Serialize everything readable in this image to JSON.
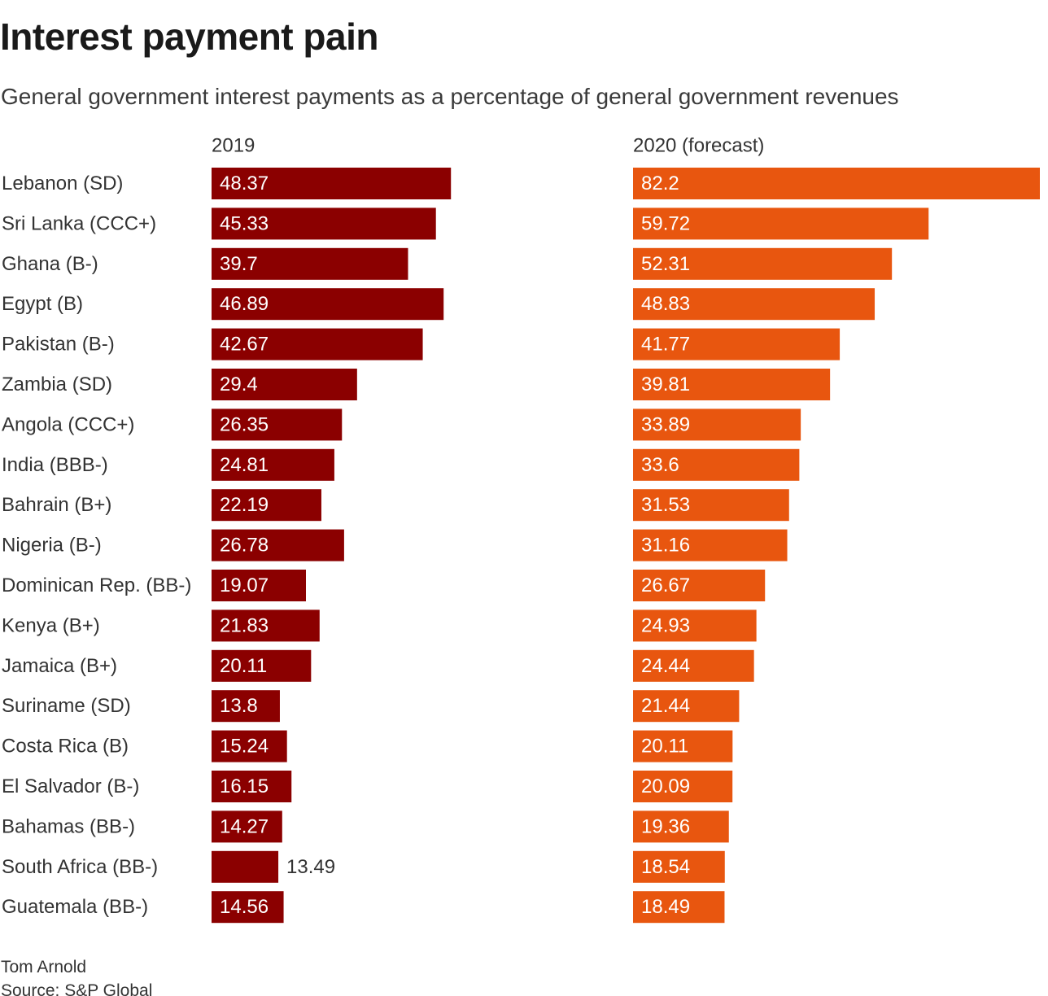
{
  "title": "Interest payment pain",
  "subtitle": "General government interest payments as a percentage of general government revenues",
  "byline": "Tom Arnold",
  "source": "Source: S&P Global",
  "colors": {
    "series_2019": "#8b0000",
    "series_2020": "#e8560f",
    "label_inside": "#ffffff",
    "label_outside": "#333333",
    "axis_text": "#333333"
  },
  "chart_data": {
    "type": "bar",
    "orientation": "horizontal",
    "title": "Interest payment pain",
    "subtitle": "General government interest payments as a percentage of general government revenues",
    "categories": [
      "Lebanon (SD)",
      "Sri Lanka (CCC+)",
      "Ghana (B-)",
      "Egypt (B)",
      "Pakistan (B-)",
      "Zambia (SD)",
      "Angola (CCC+)",
      "India (BBB-)",
      "Bahrain (B+)",
      "Nigeria (B-)",
      "Dominican Rep. (BB-)",
      "Kenya (B+)",
      "Jamaica (B+)",
      "Suriname (SD)",
      "Costa Rica (B)",
      "El Salvador (B-)",
      "Bahamas (BB-)",
      "South Africa (BB-)",
      "Guatemala (BB-)"
    ],
    "series": [
      {
        "name": "2019",
        "values": [
          48.37,
          45.33,
          39.7,
          46.89,
          42.67,
          29.4,
          26.35,
          24.81,
          22.19,
          26.78,
          19.07,
          21.83,
          20.11,
          13.8,
          15.24,
          16.15,
          14.27,
          13.49,
          14.56
        ],
        "labels": [
          "48.37",
          "45.33",
          "39.7",
          "46.89",
          "42.67",
          "29.4",
          "26.35",
          "24.81",
          "22.19",
          "26.78",
          "19.07",
          "21.83",
          "20.11",
          "13.8",
          "15.24",
          "16.15",
          "14.27",
          "13.49",
          "14.56"
        ]
      },
      {
        "name": "2020 (forecast)",
        "values": [
          82.2,
          59.72,
          52.31,
          48.83,
          41.77,
          39.81,
          33.89,
          33.6,
          31.53,
          31.16,
          26.67,
          24.93,
          24.44,
          21.44,
          20.11,
          20.09,
          19.36,
          18.54,
          18.49
        ],
        "labels": [
          "82.2",
          "59.72",
          "52.31",
          "48.83",
          "41.77",
          "39.81",
          "33.89",
          "33.6",
          "31.53",
          "31.16",
          "26.67",
          "24.93",
          "24.44",
          "21.44",
          "20.11",
          "20.09",
          "19.36",
          "18.54",
          "18.49"
        ]
      }
    ],
    "xlim": [
      0,
      82.2
    ],
    "grid": false,
    "legend": "panel-headers"
  }
}
